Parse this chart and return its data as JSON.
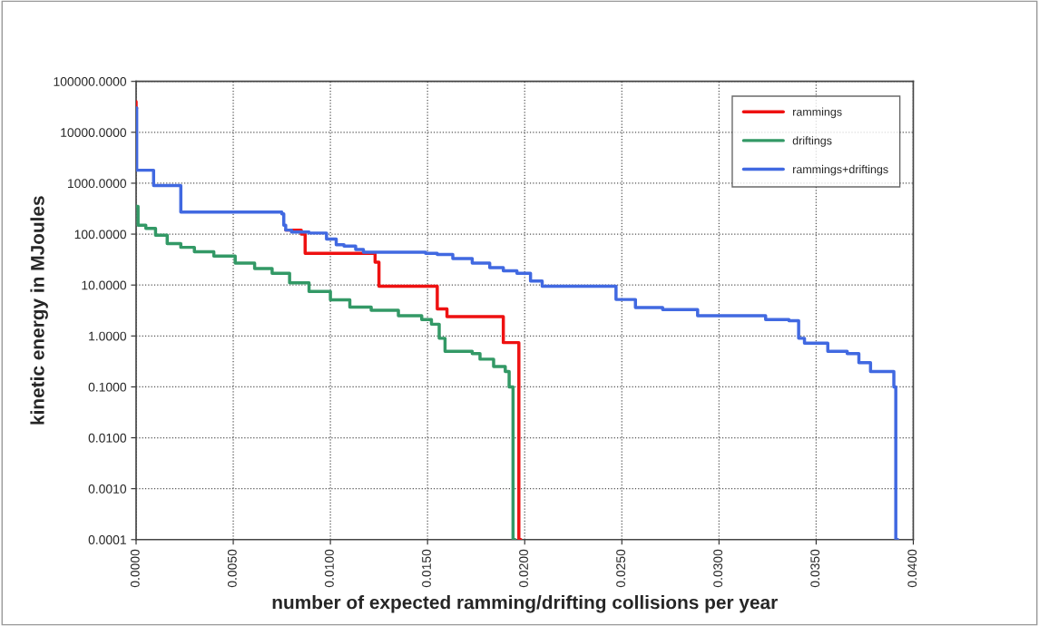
{
  "chart_data": {
    "type": "step",
    "xlabel": "number of expected ramming/drifting collisions per year",
    "ylabel": "kinetic energy in MJoules",
    "log": "y",
    "grid": true,
    "legend": "top right",
    "line_style": "solid",
    "marker": "none",
    "xlim": [
      0,
      0.04
    ],
    "xticks": [
      {
        "value": 0,
        "label": "0.0000"
      },
      {
        "value": 0.005,
        "label": "0.0050"
      },
      {
        "value": 0.01,
        "label": "0.0100"
      },
      {
        "value": 0.015,
        "label": "0.0150"
      },
      {
        "value": 0.02,
        "label": "0.0200"
      },
      {
        "value": 0.025,
        "label": "0.0250"
      },
      {
        "value": 0.03,
        "label": "0.0300"
      },
      {
        "value": 0.035,
        "label": "0.0350"
      },
      {
        "value": 0.04,
        "label": "0.0400"
      }
    ],
    "ylim": [
      0.0001,
      100000
    ],
    "yticks": [
      {
        "value": 0.0001,
        "label": "0.0001"
      },
      {
        "value": 0.001,
        "label": "0.0010"
      },
      {
        "value": 0.01,
        "label": "0.0100"
      },
      {
        "value": 0.1,
        "label": "0.1000"
      },
      {
        "value": 1,
        "label": "1.0000"
      },
      {
        "value": 10,
        "label": "10.0000"
      },
      {
        "value": 100,
        "label": "100.0000"
      },
      {
        "value": 1000,
        "label": "1000.0000"
      },
      {
        "value": 10000,
        "label": "10000.0000"
      },
      {
        "value": 100000,
        "label": "100000.0000"
      }
    ],
    "series": [
      {
        "name": "rammings",
        "color": "#ee1111",
        "x": [
          0,
          0,
          3e-05,
          0.0009,
          0.0023,
          0.0077,
          0.0085,
          0.0087,
          0.0123,
          0.0125,
          0.0129,
          0.0155,
          0.016,
          0.0189,
          0.0197,
          0.0198
        ],
        "values": [
          40000,
          30000,
          null,
          null,
          null,
          120,
          100,
          42,
          28,
          9.5,
          9.5,
          3.4,
          2.4,
          0.74,
          0.0001,
          0.0001
        ]
      },
      {
        "name": "driftings",
        "color": "#339966",
        "x": [
          0,
          0.0001,
          0.0005,
          0.001,
          0.0016,
          0.0023,
          0.003,
          0.004,
          0.0051,
          0.0061,
          0.007,
          0.0079,
          0.0089,
          0.01,
          0.011,
          0.0121,
          0.0135,
          0.0147,
          0.0152,
          0.0156,
          0.0159,
          0.0173,
          0.0177,
          0.0184,
          0.019,
          0.0192,
          0.0194,
          0.0195
        ],
        "values": [
          350,
          150,
          130,
          95,
          65,
          55,
          45,
          37,
          27,
          21,
          17,
          11,
          7.5,
          5.1,
          3.7,
          3.2,
          2.5,
          2.1,
          1.7,
          0.9,
          0.5,
          0.45,
          0.35,
          0.25,
          0.2,
          0.1,
          0.0001,
          0.0001
        ]
      },
      {
        "name": "rammings+driftings",
        "color": "#4169e1",
        "x": [
          0,
          3e-05,
          0.0009,
          0.0023,
          0.0075,
          0.0076,
          0.0077,
          0.008,
          0.0089,
          0.0098,
          0.0103,
          0.0107,
          0.0113,
          0.0117,
          0.0149,
          0.0155,
          0.0163,
          0.0173,
          0.0182,
          0.0189,
          0.0196,
          0.0203,
          0.0209,
          0.0236,
          0.0247,
          0.0257,
          0.0271,
          0.0289,
          0.0324,
          0.0336,
          0.0341,
          0.0344,
          0.0356,
          0.0366,
          0.0372,
          0.0378,
          0.0387,
          0.039,
          0.0391,
          0.0392
        ],
        "values": [
          30000,
          1800,
          900,
          270,
          250,
          150,
          120,
          110,
          105,
          80,
          62,
          58,
          50,
          44,
          42,
          40,
          33,
          27,
          22,
          19,
          17,
          12,
          9.5,
          9.5,
          5.2,
          3.6,
          3.3,
          2.5,
          2.1,
          2,
          0.9,
          0.72,
          0.5,
          0.45,
          0.3,
          0.2,
          0.2,
          0.1,
          0.0001,
          0.0001
        ]
      }
    ]
  }
}
